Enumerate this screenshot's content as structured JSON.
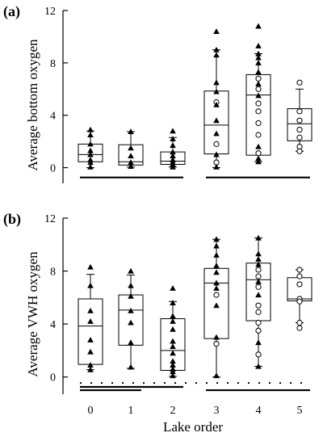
{
  "chart_data": [
    {
      "type": "box",
      "panel_label": "(a)",
      "ylabel": "Average bottom oxygen",
      "xlabel": "",
      "ylim": [
        -1.2,
        12
      ],
      "yticks": [
        "0",
        "4",
        "8",
        "12"
      ],
      "categories": [
        "0",
        "1",
        "2",
        "3",
        "4",
        "5"
      ],
      "boxes": [
        {
          "x": 0,
          "whisker_low": 0.0,
          "q1": 0.45,
          "median": 1.0,
          "q3": 1.8,
          "whisker_high": 2.8
        },
        {
          "x": 1,
          "whisker_low": 0.05,
          "q1": 0.2,
          "median": 0.45,
          "q3": 1.75,
          "whisker_high": 2.75
        },
        {
          "x": 2,
          "whisker_low": 0.05,
          "q1": 0.25,
          "median": 0.5,
          "q3": 1.2,
          "whisker_high": 2.3
        },
        {
          "x": 3,
          "whisker_low": 0.0,
          "q1": 1.05,
          "median": 3.25,
          "q3": 5.85,
          "whisker_high": 9.0
        },
        {
          "x": 4,
          "whisker_low": 0.45,
          "q1": 0.95,
          "median": 5.55,
          "q3": 7.1,
          "whisker_high": 8.7
        },
        {
          "x": 5,
          "whisker_low": 1.25,
          "q1": 2.05,
          "median": 3.35,
          "q3": 4.5,
          "whisker_high": 6.0
        }
      ],
      "points": [
        {
          "x": 0,
          "y": 2.9,
          "m": "tri"
        },
        {
          "x": 0,
          "y": 2.5,
          "m": "tri"
        },
        {
          "x": 0,
          "y": 1.8,
          "m": "tri"
        },
        {
          "x": 0,
          "y": 1.3,
          "m": "tri"
        },
        {
          "x": 0,
          "y": 1.0,
          "m": "tri"
        },
        {
          "x": 0,
          "y": 0.6,
          "m": "tri"
        },
        {
          "x": 0,
          "y": 0.4,
          "m": "tri"
        },
        {
          "x": 0,
          "y": 0.05,
          "m": "tri"
        },
        {
          "x": 1,
          "y": 2.75,
          "m": "tri"
        },
        {
          "x": 1,
          "y": 1.5,
          "m": "tri"
        },
        {
          "x": 1,
          "y": 0.9,
          "m": "tri"
        },
        {
          "x": 1,
          "y": 0.4,
          "m": "tri"
        },
        {
          "x": 1,
          "y": 0.1,
          "m": "tri"
        },
        {
          "x": 2,
          "y": 2.8,
          "m": "tri"
        },
        {
          "x": 2,
          "y": 2.2,
          "m": "tri"
        },
        {
          "x": 2,
          "y": 1.7,
          "m": "tri"
        },
        {
          "x": 2,
          "y": 1.2,
          "m": "tri"
        },
        {
          "x": 2,
          "y": 0.9,
          "m": "tri"
        },
        {
          "x": 2,
          "y": 0.6,
          "m": "tri"
        },
        {
          "x": 2,
          "y": 0.4,
          "m": "tri"
        },
        {
          "x": 2,
          "y": 0.25,
          "m": "tri"
        },
        {
          "x": 2,
          "y": 0.05,
          "m": "tri"
        },
        {
          "x": 3,
          "y": 10.4,
          "m": "tri"
        },
        {
          "x": 3,
          "y": 9.0,
          "m": "tri"
        },
        {
          "x": 3,
          "y": 8.6,
          "m": "tri"
        },
        {
          "x": 3,
          "y": 6.5,
          "m": "tri"
        },
        {
          "x": 3,
          "y": 5.8,
          "m": "tri"
        },
        {
          "x": 3,
          "y": 5.0,
          "m": "circ"
        },
        {
          "x": 3,
          "y": 4.8,
          "m": "tri"
        },
        {
          "x": 3,
          "y": 3.6,
          "m": "tri"
        },
        {
          "x": 3,
          "y": 2.6,
          "m": "tri"
        },
        {
          "x": 3,
          "y": 1.8,
          "m": "circ"
        },
        {
          "x": 3,
          "y": 1.0,
          "m": "tri"
        },
        {
          "x": 3,
          "y": 0.4,
          "m": "circ"
        },
        {
          "x": 3,
          "y": 0.05,
          "m": "tri"
        },
        {
          "x": 4,
          "y": 10.8,
          "m": "tri"
        },
        {
          "x": 4,
          "y": 9.3,
          "m": "tri"
        },
        {
          "x": 4,
          "y": 8.7,
          "m": "tri"
        },
        {
          "x": 4,
          "y": 8.4,
          "m": "tri"
        },
        {
          "x": 4,
          "y": 8.0,
          "m": "tri"
        },
        {
          "x": 4,
          "y": 7.3,
          "m": "tri"
        },
        {
          "x": 4,
          "y": 6.8,
          "m": "circ"
        },
        {
          "x": 4,
          "y": 6.4,
          "m": "tri"
        },
        {
          "x": 4,
          "y": 6.0,
          "m": "circ"
        },
        {
          "x": 4,
          "y": 5.5,
          "m": "tri"
        },
        {
          "x": 4,
          "y": 4.9,
          "m": "circ"
        },
        {
          "x": 4,
          "y": 4.3,
          "m": "circ"
        },
        {
          "x": 4,
          "y": 3.4,
          "m": "circ"
        },
        {
          "x": 4,
          "y": 2.5,
          "m": "circ"
        },
        {
          "x": 4,
          "y": 1.6,
          "m": "tri"
        },
        {
          "x": 4,
          "y": 1.1,
          "m": "circ"
        },
        {
          "x": 4,
          "y": 0.7,
          "m": "tri"
        },
        {
          "x": 4,
          "y": 0.45,
          "m": "tri"
        },
        {
          "x": 5,
          "y": 6.5,
          "m": "circ"
        },
        {
          "x": 5,
          "y": 4.3,
          "m": "circ"
        },
        {
          "x": 5,
          "y": 3.6,
          "m": "circ"
        },
        {
          "x": 5,
          "y": 2.9,
          "m": "circ"
        },
        {
          "x": 5,
          "y": 2.3,
          "m": "circ"
        },
        {
          "x": 5,
          "y": 1.6,
          "m": "circ"
        },
        {
          "x": 5,
          "y": 1.25,
          "m": "circ"
        }
      ],
      "grouping_lines": [
        {
          "from": 0,
          "to": 2,
          "style": "solid",
          "y": -0.75
        },
        {
          "from": 3,
          "to": 5,
          "style": "solid",
          "y": -0.75
        }
      ]
    },
    {
      "type": "box",
      "panel_label": "(b)",
      "ylabel": "Average VWH oxygen",
      "xlabel": "Lake order",
      "ylim": [
        -1.3,
        12
      ],
      "yticks": [
        "0",
        "4",
        "8",
        "12"
      ],
      "categories": [
        "0",
        "1",
        "2",
        "3",
        "4",
        "5"
      ],
      "boxes": [
        {
          "x": 0,
          "whisker_low": 0.55,
          "q1": 0.95,
          "median": 3.85,
          "q3": 5.9,
          "whisker_high": 7.75
        },
        {
          "x": 1,
          "whisker_low": 0.65,
          "q1": 2.4,
          "median": 5.05,
          "q3": 6.2,
          "whisker_high": 7.7
        },
        {
          "x": 2,
          "whisker_low": 0.05,
          "q1": 0.5,
          "median": 2.0,
          "q3": 4.4,
          "whisker_high": 5.7
        },
        {
          "x": 3,
          "whisker_low": 0.0,
          "q1": 2.9,
          "median": 7.1,
          "q3": 8.2,
          "whisker_high": 10.4
        },
        {
          "x": 4,
          "whisker_low": 0.8,
          "q1": 4.25,
          "median": 7.35,
          "q3": 8.6,
          "whisker_high": 10.5
        },
        {
          "x": 5,
          "whisker_low": 4.1,
          "q1": 5.75,
          "median": 5.9,
          "q3": 7.5,
          "whisker_high": 8.1
        }
      ],
      "points": [
        {
          "x": 0,
          "y": 8.3,
          "m": "tri"
        },
        {
          "x": 0,
          "y": 6.9,
          "m": "tri"
        },
        {
          "x": 0,
          "y": 5.0,
          "m": "tri"
        },
        {
          "x": 0,
          "y": 4.2,
          "m": "tri"
        },
        {
          "x": 0,
          "y": 2.8,
          "m": "tri"
        },
        {
          "x": 0,
          "y": 1.9,
          "m": "tri"
        },
        {
          "x": 0,
          "y": 0.9,
          "m": "tri"
        },
        {
          "x": 0,
          "y": 0.55,
          "m": "tri"
        },
        {
          "x": 1,
          "y": 8.0,
          "m": "tri"
        },
        {
          "x": 1,
          "y": 6.9,
          "m": "tri"
        },
        {
          "x": 1,
          "y": 6.1,
          "m": "tri"
        },
        {
          "x": 1,
          "y": 5.0,
          "m": "tri"
        },
        {
          "x": 1,
          "y": 4.1,
          "m": "tri"
        },
        {
          "x": 1,
          "y": 2.6,
          "m": "tri"
        },
        {
          "x": 1,
          "y": 0.75,
          "m": "tri"
        },
        {
          "x": 2,
          "y": 6.7,
          "m": "tri"
        },
        {
          "x": 2,
          "y": 5.6,
          "m": "tri"
        },
        {
          "x": 2,
          "y": 4.6,
          "m": "tri"
        },
        {
          "x": 2,
          "y": 4.2,
          "m": "tri"
        },
        {
          "x": 2,
          "y": 3.6,
          "m": "tri"
        },
        {
          "x": 2,
          "y": 2.7,
          "m": "tri"
        },
        {
          "x": 2,
          "y": 2.3,
          "m": "tri"
        },
        {
          "x": 2,
          "y": 1.8,
          "m": "tri"
        },
        {
          "x": 2,
          "y": 1.2,
          "m": "tri"
        },
        {
          "x": 2,
          "y": 0.9,
          "m": "tri"
        },
        {
          "x": 2,
          "y": 0.6,
          "m": "tri"
        },
        {
          "x": 2,
          "y": 0.4,
          "m": "tri"
        },
        {
          "x": 2,
          "y": 0.1,
          "m": "tri"
        },
        {
          "x": 3,
          "y": 10.4,
          "m": "tri"
        },
        {
          "x": 3,
          "y": 9.9,
          "m": "tri"
        },
        {
          "x": 3,
          "y": 9.2,
          "m": "tri"
        },
        {
          "x": 3,
          "y": 8.4,
          "m": "tri"
        },
        {
          "x": 3,
          "y": 7.9,
          "m": "tri"
        },
        {
          "x": 3,
          "y": 7.1,
          "m": "tri"
        },
        {
          "x": 3,
          "y": 6.7,
          "m": "tri"
        },
        {
          "x": 3,
          "y": 6.2,
          "m": "circ"
        },
        {
          "x": 3,
          "y": 5.4,
          "m": "tri"
        },
        {
          "x": 3,
          "y": 3.0,
          "m": "tri"
        },
        {
          "x": 3,
          "y": 2.5,
          "m": "circ"
        },
        {
          "x": 3,
          "y": 0.1,
          "m": "tri"
        },
        {
          "x": 4,
          "y": 10.5,
          "m": "tri"
        },
        {
          "x": 4,
          "y": 9.3,
          "m": "tri"
        },
        {
          "x": 4,
          "y": 8.9,
          "m": "tri"
        },
        {
          "x": 4,
          "y": 8.5,
          "m": "tri"
        },
        {
          "x": 4,
          "y": 8.1,
          "m": "circ"
        },
        {
          "x": 4,
          "y": 7.6,
          "m": "circ"
        },
        {
          "x": 4,
          "y": 7.2,
          "m": "tri"
        },
        {
          "x": 4,
          "y": 6.8,
          "m": "circ"
        },
        {
          "x": 4,
          "y": 6.2,
          "m": "tri"
        },
        {
          "x": 4,
          "y": 5.4,
          "m": "circ"
        },
        {
          "x": 4,
          "y": 4.9,
          "m": "circ"
        },
        {
          "x": 4,
          "y": 4.1,
          "m": "circ"
        },
        {
          "x": 4,
          "y": 3.5,
          "m": "circ"
        },
        {
          "x": 4,
          "y": 2.6,
          "m": "tri"
        },
        {
          "x": 4,
          "y": 1.7,
          "m": "circ"
        },
        {
          "x": 4,
          "y": 0.8,
          "m": "tri"
        },
        {
          "x": 5,
          "y": 8.1,
          "m": "circ"
        },
        {
          "x": 5,
          "y": 7.6,
          "m": "circ"
        },
        {
          "x": 5,
          "y": 7.0,
          "m": "circ"
        },
        {
          "x": 5,
          "y": 5.9,
          "m": "circ"
        },
        {
          "x": 5,
          "y": 5.7,
          "m": "circ"
        },
        {
          "x": 5,
          "y": 4.1,
          "m": "circ"
        },
        {
          "x": 5,
          "y": 3.7,
          "m": "circ"
        }
      ],
      "grouping_lines": [
        {
          "from": 0,
          "to": 5,
          "style": "dotted",
          "y": -0.45
        },
        {
          "from": 0,
          "to": 2,
          "style": "solid",
          "y": -0.75
        },
        {
          "from": 0,
          "to": 1,
          "style": "solid",
          "y": -1.0
        },
        {
          "from": 3,
          "to": 5,
          "style": "solid",
          "y": -1.0
        }
      ]
    }
  ]
}
